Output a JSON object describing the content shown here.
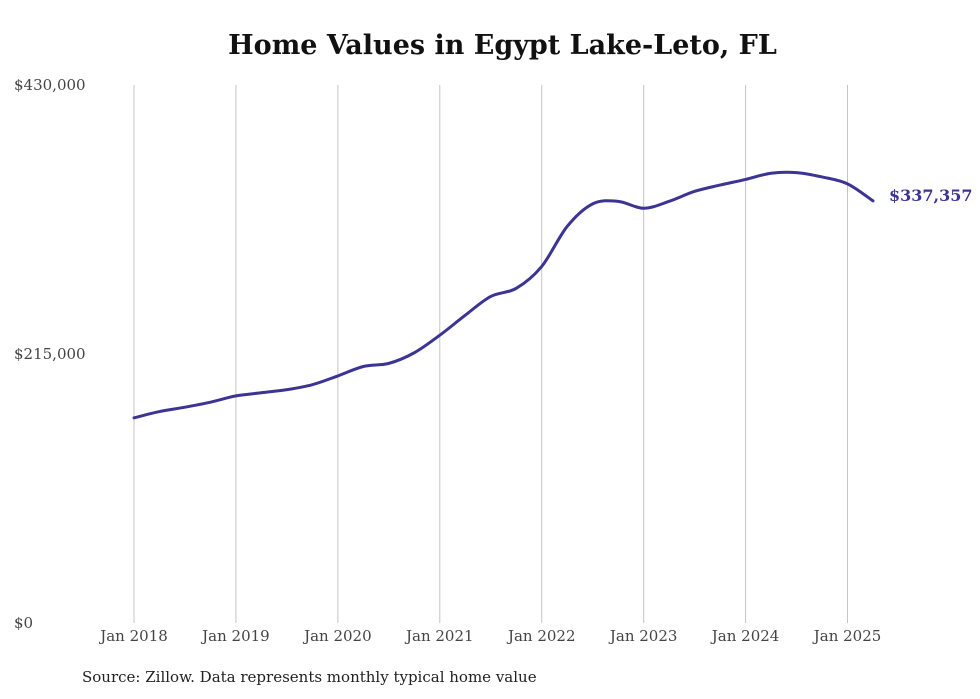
{
  "chart_data": {
    "type": "line",
    "title": "Home Values in Egypt Lake-Leto, FL",
    "source": "Source: Zillow. Data represents monthly typical home value",
    "ylim": [
      0,
      430000
    ],
    "yticks": [
      {
        "value": 0,
        "label": "$0"
      },
      {
        "value": 215000,
        "label": "$215,000"
      },
      {
        "value": 430000,
        "label": "$430,000"
      }
    ],
    "xlim": [
      2018.0,
      2025.25
    ],
    "xticks": [
      {
        "value": 2018,
        "label": "Jan 2018"
      },
      {
        "value": 2019,
        "label": "Jan 2019"
      },
      {
        "value": 2020,
        "label": "Jan 2020"
      },
      {
        "value": 2021,
        "label": "Jan 2021"
      },
      {
        "value": 2022,
        "label": "Jan 2022"
      },
      {
        "value": 2023,
        "label": "Jan 2023"
      },
      {
        "value": 2024,
        "label": "Jan 2024"
      },
      {
        "value": 2025,
        "label": "Jan 2025"
      }
    ],
    "grid": "vertical",
    "line_color": "#3b3494",
    "end_label": "$337,357",
    "series": [
      {
        "points": [
          [
            2018.0,
            164000
          ],
          [
            2018.25,
            169000
          ],
          [
            2018.5,
            172500
          ],
          [
            2018.75,
            176500
          ],
          [
            2019.0,
            181500
          ],
          [
            2019.25,
            184000
          ],
          [
            2019.5,
            186500
          ],
          [
            2019.75,
            190500
          ],
          [
            2020.0,
            197500
          ],
          [
            2020.25,
            205000
          ],
          [
            2020.5,
            207500
          ],
          [
            2020.75,
            216000
          ],
          [
            2021.0,
            230000
          ],
          [
            2021.25,
            246000
          ],
          [
            2021.5,
            261000
          ],
          [
            2021.75,
            267500
          ],
          [
            2022.0,
            285000
          ],
          [
            2022.25,
            317000
          ],
          [
            2022.5,
            335000
          ],
          [
            2022.75,
            337000
          ],
          [
            2023.0,
            331500
          ],
          [
            2023.25,
            337000
          ],
          [
            2023.5,
            345000
          ],
          [
            2023.75,
            350000
          ],
          [
            2024.0,
            354500
          ],
          [
            2024.25,
            359500
          ],
          [
            2024.5,
            360000
          ],
          [
            2024.75,
            356500
          ],
          [
            2025.0,
            351000
          ],
          [
            2025.25,
            337357
          ]
        ]
      }
    ]
  }
}
